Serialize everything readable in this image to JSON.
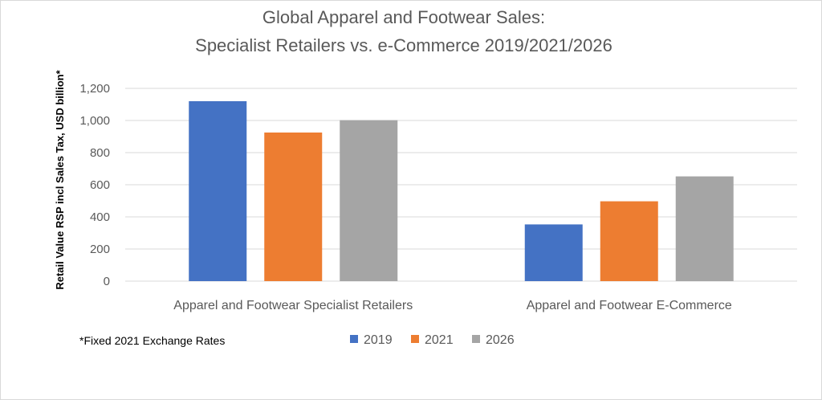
{
  "chart_data": {
    "type": "bar",
    "title": [
      "Global Apparel and Footwear  Sales:",
      "Specialist Retailers vs. e-Commerce 2019/2021/2026"
    ],
    "ylabel": "Retail Value RSP incl Sales Tax, USD billion*",
    "xlabel": "",
    "categories": [
      "Apparel and Footwear Specialist Retailers",
      "Apparel and Footwear E-Commerce"
    ],
    "series": [
      {
        "name": "2019",
        "color": "#4472c4",
        "values": [
          1120,
          353
        ]
      },
      {
        "name": "2021",
        "color": "#ed7d31",
        "values": [
          925,
          497
        ]
      },
      {
        "name": "2026",
        "color": "#a5a5a5",
        "values": [
          1002,
          652
        ]
      }
    ],
    "ylim": [
      0,
      1200
    ],
    "yticks": [
      0,
      200,
      400,
      600,
      800,
      1000,
      1200
    ],
    "ytick_labels": [
      "0",
      "200",
      "400",
      "600",
      "800",
      "1,000",
      "1,200"
    ],
    "grid": true,
    "legend_position": "bottom",
    "footnote": "*Fixed 2021 Exchange Rates"
  }
}
